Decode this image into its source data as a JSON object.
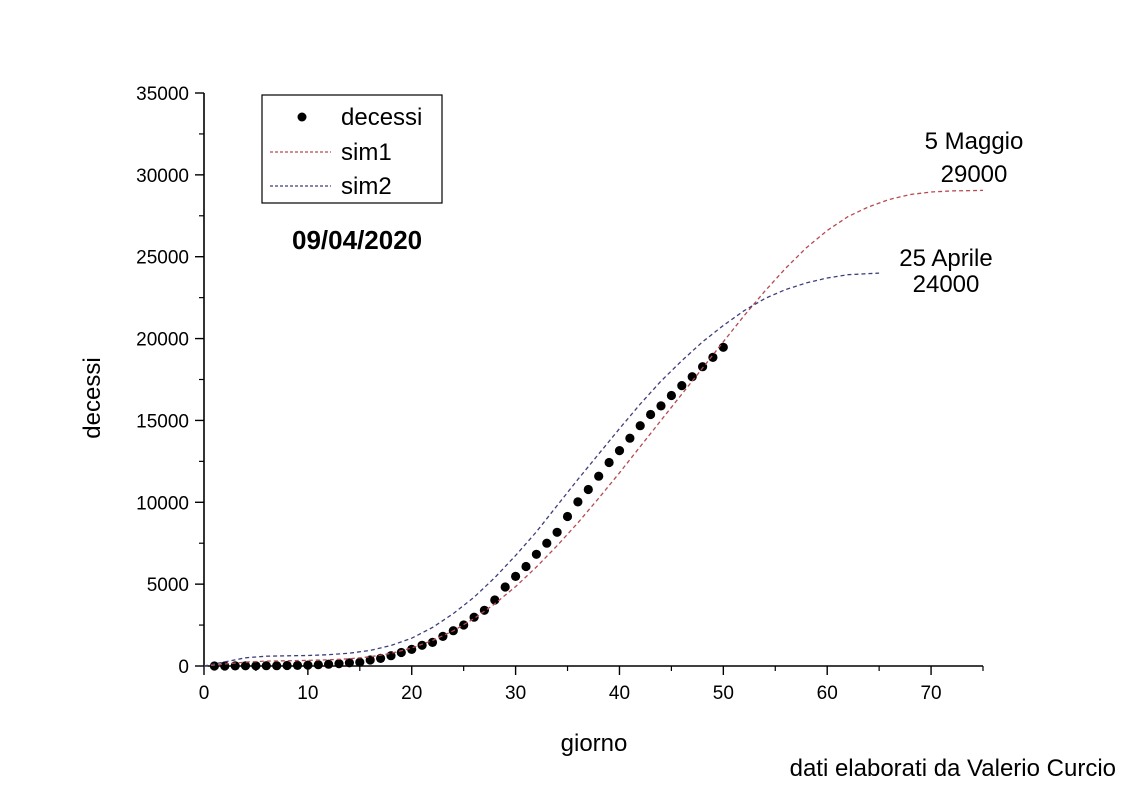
{
  "chart_data": {
    "type": "scatter",
    "title": "",
    "date_stamp": "09/04/2020",
    "credit": "dati elaborati da Valerio Curcio",
    "xlabel": "giorno",
    "ylabel": "decessi",
    "xlim": [
      0,
      75
    ],
    "ylim": [
      0,
      35000
    ],
    "x_ticks": [
      0,
      10,
      20,
      30,
      40,
      50,
      60,
      70
    ],
    "y_ticks": [
      0,
      5000,
      10000,
      15000,
      20000,
      25000,
      30000,
      35000
    ],
    "x_tick_labels": [
      "0",
      "10",
      "20",
      "30",
      "40",
      "50",
      "60",
      "70"
    ],
    "y_tick_labels": [
      "0",
      "5000",
      "10000",
      "15000",
      "20000",
      "25000",
      "30000",
      "35000"
    ],
    "grid": false,
    "legend_position": "top-left",
    "series": [
      {
        "name": "decessi",
        "style": "markers",
        "color": "#000000",
        "x": [
          1,
          2,
          3,
          4,
          5,
          6,
          7,
          8,
          9,
          10,
          11,
          12,
          13,
          14,
          15,
          16,
          17,
          18,
          19,
          20,
          21,
          22,
          23,
          24,
          25,
          26,
          27,
          28,
          29,
          30,
          31,
          32,
          33,
          34,
          35,
          36,
          37,
          38,
          39,
          40,
          41,
          42,
          43,
          44,
          45,
          46,
          47,
          48,
          49,
          50
        ],
        "y": [
          2,
          3,
          7,
          10,
          12,
          17,
          21,
          29,
          34,
          52,
          79,
          107,
          148,
          197,
          233,
          366,
          463,
          631,
          827,
          1016,
          1266,
          1441,
          1809,
          2158,
          2503,
          2978,
          3405,
          4032,
          4825,
          5476,
          6077,
          6820,
          7503,
          8165,
          9134,
          10023,
          10779,
          11591,
          12428,
          13155,
          13915,
          14681,
          15362,
          15887,
          16523,
          17127,
          17669,
          18279,
          18849,
          19468
        ]
      },
      {
        "name": "sim1",
        "style": "dashed",
        "color": "#b54a52",
        "x": [
          0,
          2,
          4,
          6,
          8,
          10,
          12,
          14,
          16,
          18,
          20,
          22,
          24,
          26,
          28,
          30,
          32,
          34,
          36,
          38,
          40,
          42,
          44,
          46,
          48,
          50,
          52,
          54,
          56,
          58,
          60,
          62,
          64,
          66,
          68,
          70,
          72,
          75
        ],
        "y": [
          0,
          120,
          240,
          300,
          320,
          340,
          380,
          440,
          560,
          770,
          1100,
          1560,
          2150,
          2900,
          3800,
          4850,
          6050,
          7350,
          8750,
          10250,
          11800,
          13400,
          15000,
          16600,
          18200,
          19800,
          21400,
          22900,
          24300,
          25550,
          26600,
          27450,
          28050,
          28500,
          28800,
          28950,
          29020,
          29050
        ]
      },
      {
        "name": "sim2",
        "style": "dashed",
        "color": "#3d3f7c",
        "x": [
          0,
          2,
          4,
          6,
          8,
          10,
          12,
          14,
          16,
          18,
          20,
          22,
          24,
          26,
          28,
          30,
          32,
          34,
          36,
          38,
          40,
          42,
          44,
          46,
          48,
          50,
          52,
          54,
          56,
          58,
          60,
          62,
          65
        ],
        "y": [
          0,
          250,
          500,
          600,
          620,
          640,
          690,
          780,
          950,
          1250,
          1700,
          2350,
          3200,
          4200,
          5400,
          6750,
          8200,
          9800,
          11400,
          12950,
          14500,
          16000,
          17400,
          18650,
          19800,
          20800,
          21700,
          22450,
          23000,
          23400,
          23700,
          23900,
          24000
        ]
      }
    ],
    "annotations": [
      {
        "line1": "5 Maggio",
        "line2": "29000",
        "x": 74.5,
        "y": 30000
      },
      {
        "line1": "25 Aprile",
        "line2": "24000",
        "x": 71.5,
        "y": 24000
      }
    ]
  }
}
